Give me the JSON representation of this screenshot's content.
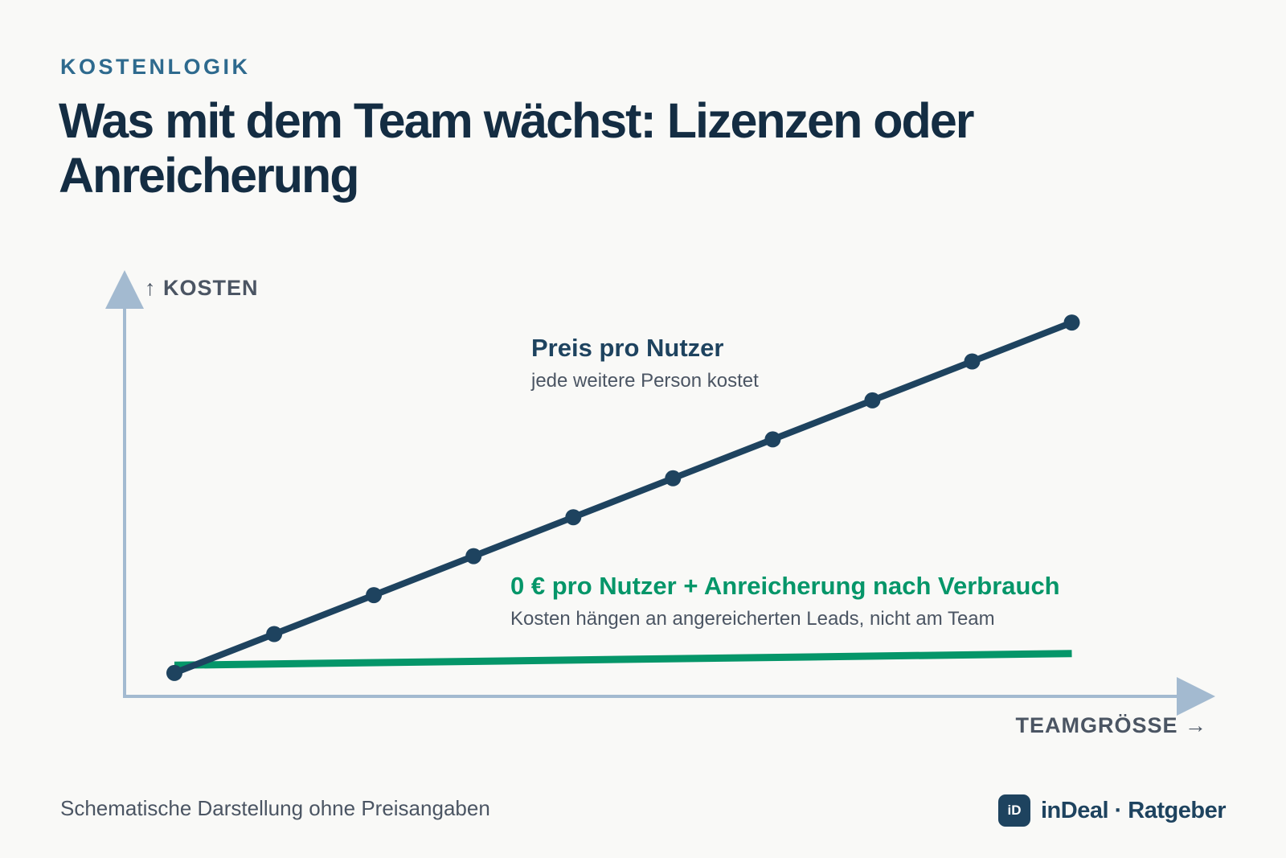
{
  "header": {
    "eyebrow": "KOSTENLOGIK",
    "title_line1": "Was mit dem Team wächst: Lizenzen oder",
    "title_line2": "Anreicherung"
  },
  "footer": {
    "note": "Schematische Darstellung ohne Preisangaben",
    "brand_logo": "iD",
    "brand_name": "inDeal · Ratgeber"
  },
  "colors": {
    "background": "#f9f9f7",
    "axis": "#a3bad0",
    "per_user_series": "#1e435f",
    "usage_series": "#059669",
    "muted_text": "#4b5563"
  },
  "chart_data": {
    "type": "line",
    "ylabel": "↑ KOSTEN",
    "xlabel": "TEAMGRÖSSE →",
    "x": [
      1,
      2,
      3,
      4,
      5,
      6,
      7,
      8,
      9,
      10
    ],
    "xlim": [
      0.5,
      11.1
    ],
    "ylim": [
      0,
      10.2
    ],
    "grid": false,
    "ticks": false,
    "series": [
      {
        "name": "Preis pro Nutzer",
        "description": "jede weitere Person kostet",
        "color": "#1e435f",
        "markers": true,
        "x": [
          1,
          2,
          3,
          4,
          5,
          6,
          7,
          8,
          9,
          10
        ],
        "values": [
          0.6,
          1.6,
          2.6,
          3.6,
          4.6,
          5.6,
          6.6,
          7.6,
          8.6,
          9.6
        ]
      },
      {
        "name": "0 € pro Nutzer + Anreicherung nach Verbrauch",
        "description": "Kosten hängen an angereicherten Leads, nicht am Team",
        "color": "#059669",
        "markers": false,
        "x": [
          1,
          10
        ],
        "values": [
          0.8,
          1.1
        ]
      }
    ]
  }
}
